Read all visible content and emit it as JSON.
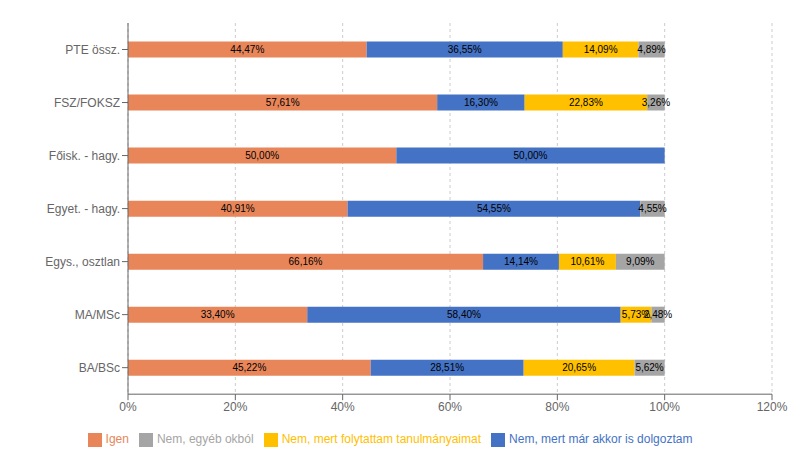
{
  "chart_data": {
    "type": "bar",
    "orientation": "horizontal",
    "stacked": true,
    "data_labels": true,
    "grid": true,
    "legend": "bottom",
    "categories": [
      "BA/BSc",
      "MA/MSc",
      "Egys., osztlan",
      "Egyet. - hagy.",
      "Főisk. - hagy.",
      "FSZ/FOKSZ",
      "PTE össz."
    ],
    "series": [
      {
        "name": "Igen",
        "color": "#E8865A",
        "values": [
          45.22,
          33.4,
          66.16,
          40.91,
          50.0,
          57.61,
          44.47
        ],
        "value_labels": [
          "45,22%",
          "33,40%",
          "66,16%",
          "40,91%",
          "50,00%",
          "57,61%",
          "44,47%"
        ]
      },
      {
        "name": "Nem, mert már akkor is dolgoztam",
        "color": "#4472C4",
        "values": [
          28.51,
          58.4,
          14.14,
          54.55,
          50.0,
          16.3,
          36.55
        ],
        "value_labels": [
          "28,51%",
          "58,40%",
          "14,14%",
          "54,55%",
          "50,00%",
          "16,30%",
          "36,55%"
        ]
      },
      {
        "name": "Nem, mert folytattam tanulmányaimat",
        "color": "#FFC000",
        "values": [
          20.65,
          5.73,
          10.61,
          0.0,
          0.0,
          22.83,
          14.09
        ],
        "value_labels": [
          "20,65%",
          "5,73%",
          "10,61%",
          null,
          null,
          "22,83%",
          "14,09%"
        ]
      },
      {
        "name": "Nem, egyéb okból",
        "color": "#A5A5A5",
        "values": [
          5.62,
          2.48,
          9.09,
          4.55,
          0.0,
          3.26,
          4.89
        ],
        "value_labels": [
          "5,62%",
          "2,48%",
          "9,09%",
          "4,55%",
          null,
          "3,26%",
          "4,89%"
        ]
      }
    ],
    "xlim": [
      0,
      120
    ],
    "xticks": [
      {
        "value": 0,
        "label": "0%"
      },
      {
        "value": 20,
        "label": "20%"
      },
      {
        "value": 40,
        "label": "40%"
      },
      {
        "value": 60,
        "label": "60%"
      },
      {
        "value": 80,
        "label": "80%"
      },
      {
        "value": 100,
        "label": "100%"
      },
      {
        "value": 120,
        "label": "120%"
      }
    ]
  }
}
